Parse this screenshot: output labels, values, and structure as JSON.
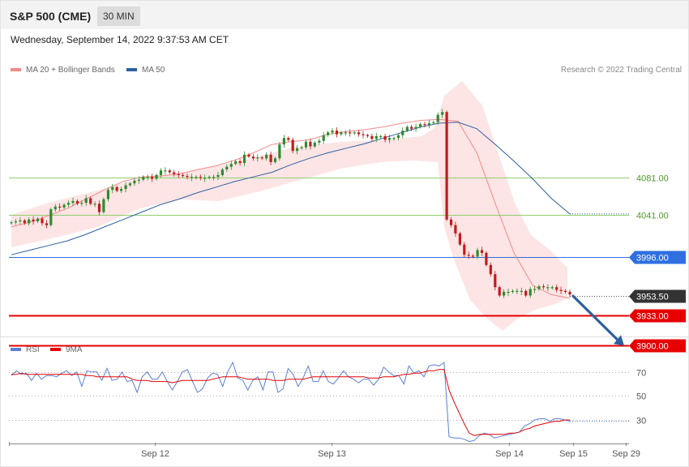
{
  "header": {
    "title": "S&P 500 (CME)",
    "timeframe": "30 MIN"
  },
  "timestamp": "Wednesday, September 14, 2022 9:37:53 AM CET",
  "credit": "Research © 2022 Trading Central",
  "main_legend": [
    {
      "label": "MA 20 + Bollinger Bands",
      "color": "#f08a8a"
    },
    {
      "label": "MA 50",
      "color": "#2f5f9e"
    }
  ],
  "rsi_legend": [
    {
      "label": "RSI",
      "color": "#5b7fd6"
    },
    {
      "label": "9MA",
      "color": "#e60000"
    }
  ],
  "colors": {
    "up": "#2e8b2e",
    "down": "#c41a1a",
    "resistance": "#8fcf6a",
    "pivot": "#2f6fe0",
    "support": "#e60000",
    "current": "#333333",
    "arrow": "#2f5f9e"
  },
  "chart_data": [
    {
      "type": "candlestick",
      "ylim": [
        3870,
        4185
      ],
      "levels": [
        {
          "value": 4081.0,
          "label": "4081.00",
          "kind": "resistance"
        },
        {
          "value": 4041.0,
          "label": "4041.00",
          "kind": "resistance"
        },
        {
          "value": 3996.0,
          "label": "3996.00",
          "kind": "pivot"
        },
        {
          "value": 3953.5,
          "label": "3953.50",
          "kind": "current"
        },
        {
          "value": 3933.0,
          "label": "3933.00",
          "kind": "support"
        },
        {
          "value": 3900.0,
          "label": "3900.00",
          "kind": "support"
        }
      ],
      "projection": {
        "from": 3953.5,
        "to": 3900.0,
        "direction": "down"
      },
      "series": [
        {
          "name": "MA 20 + Bollinger Bands",
          "values": [
            4028,
            4033,
            4040,
            4048,
            4058,
            4068,
            4077,
            4082,
            4083,
            4085,
            4090,
            4094,
            4100,
            4108,
            4117,
            4120,
            4122,
            4128,
            4131,
            4133,
            4136,
            4140,
            4143,
            4144,
            4142,
            4108,
            4053,
            4000,
            3965,
            3955,
            3951
          ]
        },
        {
          "name": "MA 50",
          "values": [
            3998,
            4003,
            4008,
            4013,
            4020,
            4028,
            4036,
            4044,
            4052,
            4058,
            4065,
            4071,
            4077,
            4082,
            4087,
            4095,
            4102,
            4108,
            4113,
            4118,
            4124,
            4130,
            4136,
            4140,
            4141,
            4134,
            4117,
            4099,
            4080,
            4059,
            4042
          ]
        }
      ],
      "closes": [
        4033,
        4034,
        4035,
        4032,
        4036,
        4034,
        4037,
        4032,
        4030,
        4047,
        4050,
        4049,
        4052,
        4054,
        4056,
        4053,
        4054,
        4059,
        4053,
        4053,
        4044,
        4058,
        4068,
        4071,
        4067,
        4069,
        4073,
        4075,
        4078,
        4079,
        4082,
        4082,
        4080,
        4084,
        4089,
        4089,
        4087,
        4085,
        4084,
        4083,
        4082,
        4082,
        4082,
        4081,
        4081,
        4082,
        4082,
        4084,
        4090,
        4093,
        4096,
        4099,
        4097,
        4106,
        4104,
        4102,
        4103,
        4102,
        4106,
        4098,
        4102,
        4117,
        4124,
        4122,
        4110,
        4113,
        4114,
        4120,
        4115,
        4119,
        4121,
        4127,
        4130,
        4132,
        4128,
        4130,
        4130,
        4129,
        4130,
        4128,
        4127,
        4126,
        4123,
        4126,
        4126,
        4122,
        4124,
        4124,
        4127,
        4132,
        4136,
        4134,
        4136,
        4139,
        4138,
        4140,
        4141,
        4149,
        4152,
        4036,
        4030,
        4021,
        4009,
        3998,
        3997,
        3996,
        4003,
        4000,
        3987,
        3977,
        3963,
        3954,
        3958,
        3958,
        3959,
        3959,
        3959,
        3954,
        3961,
        3961,
        3964,
        3963,
        3963,
        3963,
        3960,
        3959,
        3958,
        3955
      ],
      "x_ticks": [
        "Sep 12",
        "Sep 13",
        "Sep 14",
        "Sep 15",
        "Sep 29"
      ]
    },
    {
      "type": "line",
      "title": "RSI",
      "y_ticks": [
        70,
        50,
        30
      ],
      "series": [
        {
          "name": "RSI",
          "values": [
            67,
            71,
            68,
            69,
            63,
            69,
            64,
            67,
            67,
            66,
            69,
            71,
            67,
            70,
            58,
            71,
            70,
            70,
            63,
            73,
            63,
            64,
            70,
            62,
            63,
            53,
            66,
            70,
            64,
            64,
            70,
            62,
            55,
            62,
            70,
            72,
            62,
            53,
            56,
            65,
            69,
            68,
            58,
            70,
            78,
            65,
            63,
            55,
            63,
            66,
            55,
            70,
            70,
            53,
            56,
            73,
            68,
            58,
            65,
            75,
            62,
            62,
            71,
            62,
            60,
            65,
            71,
            66,
            64,
            61,
            64,
            64,
            59,
            64,
            74,
            70,
            67,
            67,
            60,
            75,
            69,
            71,
            66,
            75,
            76,
            75,
            78,
            16,
            15,
            15,
            14,
            12,
            13,
            17,
            19,
            18,
            15,
            16,
            17,
            18,
            19,
            20,
            25,
            27,
            30,
            31,
            31,
            29,
            31,
            31,
            30,
            29
          ]
        },
        {
          "name": "9MA",
          "values": [
            68,
            68,
            69,
            68,
            68,
            68,
            68,
            68,
            68,
            68,
            68,
            68,
            68,
            68,
            68,
            67,
            67,
            66,
            66,
            66,
            66,
            66,
            66,
            66,
            64,
            63,
            63,
            63,
            62,
            62,
            62,
            62,
            61,
            62,
            63,
            63,
            63,
            63,
            63,
            63,
            64,
            65,
            66,
            66,
            66,
            66,
            65,
            64,
            64,
            64,
            64,
            64,
            63,
            63,
            63,
            64,
            64,
            64,
            64,
            65,
            66,
            66,
            66,
            66,
            66,
            66,
            66,
            66,
            66,
            66,
            66,
            65,
            65,
            65,
            66,
            66,
            66,
            67,
            68,
            68,
            69,
            69,
            70,
            71,
            71,
            72,
            72,
            55,
            45,
            36,
            27,
            19,
            17,
            18,
            18,
            18,
            18,
            18,
            18,
            19,
            19,
            20,
            22,
            23,
            25,
            26,
            27,
            28,
            29,
            29,
            30,
            30
          ]
        }
      ]
    }
  ]
}
